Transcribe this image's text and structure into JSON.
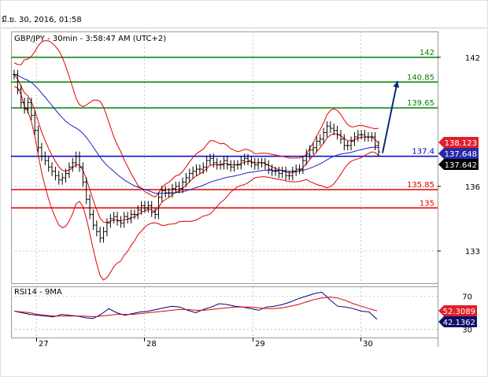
{
  "date_stamp": "มี.ย. 30, 2016, 01:58",
  "title": "GBP/JPY - 30min - 3:58:47 AM (UTC+2)",
  "rsi_title": "RSI14 - 9MA",
  "colors": {
    "price": "#000000",
    "bollinger": "#e00000",
    "moving_average": "#2020c0",
    "resistance": "#008000",
    "support": "#e00000",
    "pivot": "#0000cc",
    "arrow": "#0a2a7a",
    "rsi_line": "#000080",
    "rsi_ma": "#e00000",
    "grid": "#c8c8c8"
  },
  "chart_data": [
    {
      "type": "line",
      "name": "GBP/JPY 30min",
      "x_ticks": [
        "27",
        "28",
        "29",
        "30"
      ],
      "y_ticks": [
        133,
        136,
        142
      ],
      "ylim": [
        131.5,
        143.2
      ],
      "grid": true,
      "price_series": [
        141.2,
        140.5,
        139.9,
        139.6,
        139.9,
        139.3,
        138.6,
        137.8,
        137.4,
        137.2,
        136.9,
        136.7,
        136.5,
        136.3,
        136.4,
        136.6,
        136.9,
        137.1,
        137.4,
        136.9,
        136.2,
        135.4,
        134.7,
        134.2,
        133.9,
        133.6,
        133.9,
        134.3,
        134.5,
        134.6,
        134.4,
        134.3,
        134.6,
        134.5,
        134.7,
        134.7,
        134.9,
        135.1,
        135.0,
        135.1,
        134.8,
        134.7,
        135.5,
        135.8,
        135.7,
        135.7,
        135.9,
        136.0,
        135.9,
        136.2,
        136.4,
        136.6,
        136.7,
        136.8,
        136.8,
        136.9,
        137.2,
        137.3,
        137.1,
        137.0,
        137.0,
        137.2,
        137.0,
        136.9,
        137.0,
        137.0,
        137.2,
        137.3,
        137.2,
        137.1,
        137.0,
        137.1,
        137.1,
        137.0,
        136.8,
        136.7,
        136.7,
        136.6,
        136.7,
        136.5,
        136.5,
        136.7,
        136.8,
        136.8,
        137.2,
        137.5,
        137.7,
        137.8,
        138.1,
        138.2,
        138.5,
        138.8,
        138.7,
        138.6,
        138.4,
        138.2,
        137.9,
        137.9,
        138.1,
        138.3,
        138.4,
        138.4,
        138.3,
        138.3,
        138.3,
        137.9,
        137.6
      ],
      "lines": [
        {
          "label": "142",
          "value": 142.0,
          "kind": "resistance"
        },
        {
          "label": "140.85",
          "value": 140.85,
          "kind": "resistance"
        },
        {
          "label": "139.65",
          "value": 139.65,
          "kind": "resistance"
        },
        {
          "label": "137.4",
          "value": 137.4,
          "kind": "pivot"
        },
        {
          "label": "135.85",
          "value": 135.85,
          "kind": "support"
        },
        {
          "label": "135",
          "value": 135.0,
          "kind": "support"
        }
      ],
      "price_tags": [
        {
          "label": "138.123",
          "kind": "bollinger"
        },
        {
          "label": "137.648",
          "kind": "moving_average"
        },
        {
          "label": "137.642",
          "kind": "price"
        }
      ]
    },
    {
      "type": "line",
      "name": "RSI14 - 9MA",
      "y_ticks": [
        30,
        70
      ],
      "ylim": [
        20,
        82
      ],
      "series": [
        {
          "name": "RSI14",
          "values": [
            52,
            50,
            48,
            47,
            46,
            45,
            48,
            47,
            46,
            44,
            43,
            48,
            55,
            50,
            47,
            49,
            51,
            52,
            54,
            56,
            58,
            57,
            53,
            50,
            54,
            57,
            61,
            60,
            58,
            57,
            55,
            53,
            57,
            58,
            60,
            63,
            67,
            70,
            73,
            75,
            66,
            58,
            57,
            55,
            52,
            51,
            42
          ]
        },
        {
          "name": "9MA",
          "values": [
            52,
            51,
            50,
            48,
            47,
            46,
            46,
            46,
            46,
            46,
            45,
            46,
            47,
            48,
            48,
            48,
            49,
            50,
            51,
            52,
            53,
            54,
            54,
            53,
            53,
            54,
            55,
            56,
            57,
            57,
            57,
            56,
            55,
            55,
            56,
            58,
            60,
            63,
            66,
            68,
            69,
            68,
            65,
            61,
            58,
            55,
            52.3
          ]
        }
      ],
      "price_tags": [
        {
          "label": "52.3089",
          "kind": "rsi_ma"
        },
        {
          "label": "42.1362",
          "kind": "rsi_line"
        }
      ]
    }
  ]
}
